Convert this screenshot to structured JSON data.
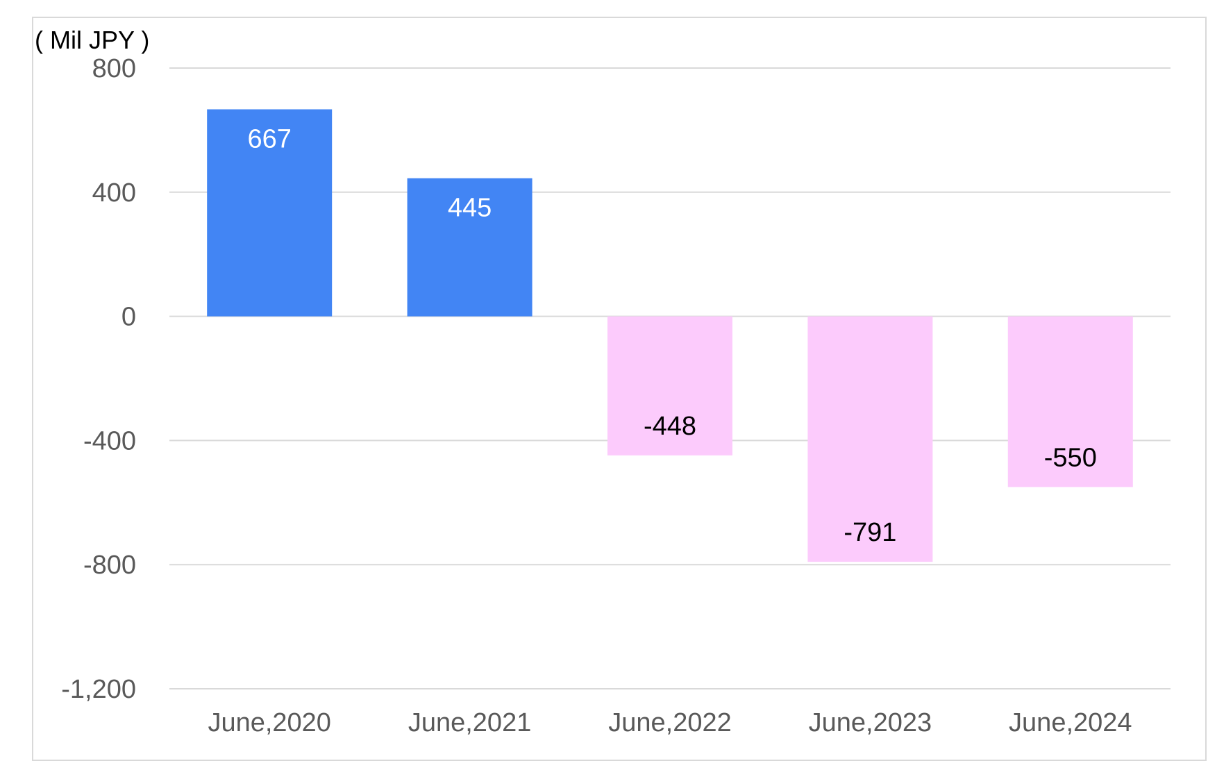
{
  "chart_data": {
    "type": "bar",
    "unit_label": "( Mil JPY )",
    "categories": [
      "June,2020",
      "June,2021",
      "June,2022",
      "June,2023",
      "June,2024"
    ],
    "values": [
      667,
      445,
      -448,
      -791,
      -550
    ],
    "data_labels": [
      "667",
      "445",
      "-448",
      "-791",
      "-550"
    ],
    "yticks": [
      800,
      400,
      0,
      -400,
      -800,
      -1200
    ],
    "ytick_labels": [
      "800",
      "400",
      "0",
      "-400",
      "-800",
      "-1,200"
    ],
    "ylim": [
      -1200,
      800
    ],
    "grid": true,
    "legend": "none",
    "colors": {
      "positive": "#4285f4",
      "negative": "#fccbfc",
      "positive_label": "#ffffff",
      "negative_label": "#000000",
      "grid": "#d9d9d9",
      "tick_text": "#595959"
    }
  }
}
